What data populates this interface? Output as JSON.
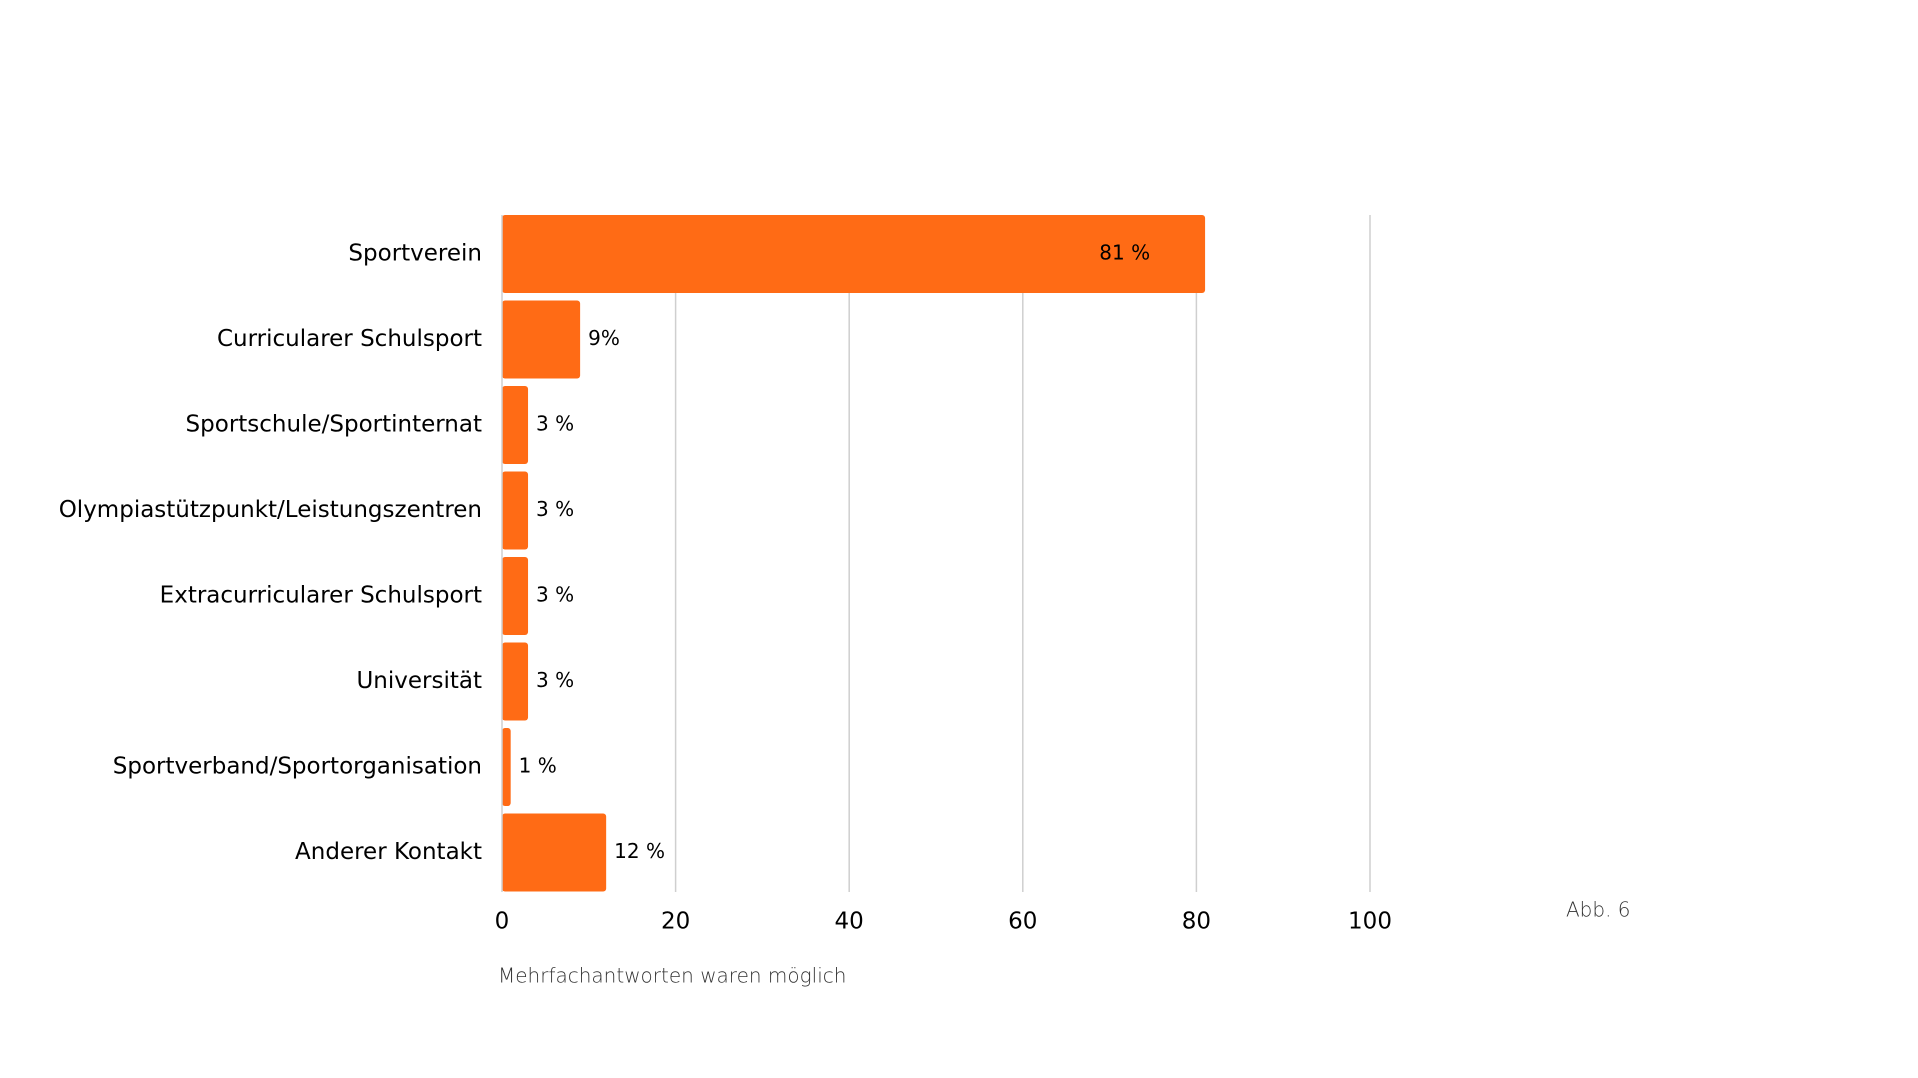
{
  "chart_data": {
    "type": "bar",
    "orientation": "horizontal",
    "categories": [
      "Sportverein",
      "Curricularer Schulsport",
      "Sportschule/Sportinternat",
      "Olympiastützpunkt/Leistungszentren",
      "Extracurricularer Schulsport",
      "Universität",
      "Sportverband/Sportorganisation",
      "Anderer Kontakt"
    ],
    "values": [
      81,
      9,
      3,
      3,
      3,
      3,
      1,
      12
    ],
    "value_labels": [
      "81 %",
      "9%",
      "3 %",
      "3 %",
      "3 %",
      "3 %",
      "1 %",
      "12 %"
    ],
    "title": "",
    "xlabel": "",
    "ylabel": "",
    "xlim": [
      0,
      100
    ],
    "xticks": [
      0,
      20,
      40,
      60,
      80,
      100
    ],
    "xtick_labels": [
      "0",
      "20",
      "40",
      "60",
      "80",
      "100"
    ],
    "grid": "vertical",
    "legend": "none",
    "bar_color": "#ff6b15",
    "grid_color": "#cfcfcf",
    "note": "Mehrfachantworten waren möglich",
    "figure_label": "Abb. 6"
  }
}
